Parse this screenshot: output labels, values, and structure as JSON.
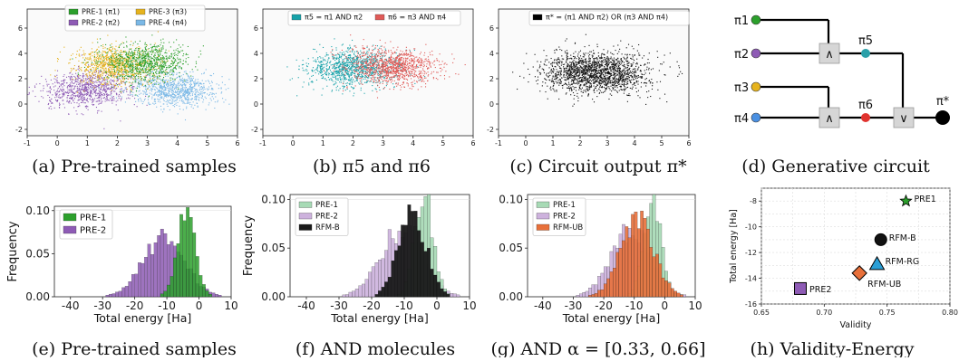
{
  "panels": [
    {
      "id": "a",
      "caption": "(a) Pre-trained samples",
      "type": "scatter",
      "xlim": [
        -1,
        6
      ],
      "ylim": [
        -2.5,
        7.5
      ],
      "xticks": [
        "-1",
        "0",
        "1",
        "2",
        "3",
        "4",
        "5",
        "6"
      ],
      "yticks": [
        "-2",
        "0",
        "2",
        "4",
        "6"
      ],
      "legend": [
        {
          "label": "PRE-1 (π1)",
          "color": "#2ca02c"
        },
        {
          "label": "PRE-3 (π3)",
          "color": "#e6b31e"
        },
        {
          "label": "PRE-2 (π2)",
          "color": "#8e5bb5"
        },
        {
          "label": "PRE-4 (π4)",
          "color": "#7ab8e6"
        }
      ],
      "clusters": [
        {
          "name": "PRE-2",
          "color": "#8e5bb5",
          "cx": 1.0,
          "cy": 1.2,
          "sx": 0.75,
          "sy": 0.7,
          "rot": 0.55,
          "n": 900
        },
        {
          "name": "PRE-4",
          "color": "#7ab8e6",
          "cx": 3.9,
          "cy": 1.2,
          "sx": 0.75,
          "sy": 0.65,
          "rot": -0.55,
          "n": 900
        },
        {
          "name": "PRE-3",
          "color": "#e6b31e",
          "cx": 1.9,
          "cy": 3.1,
          "sx": 0.7,
          "sy": 0.75,
          "rot": 0.5,
          "n": 900
        },
        {
          "name": "PRE-1",
          "color": "#2ca02c",
          "cx": 2.9,
          "cy": 3.3,
          "sx": 0.7,
          "sy": 0.7,
          "rot": -0.4,
          "n": 900
        }
      ]
    },
    {
      "id": "b",
      "caption": "(b) π5 and π6",
      "type": "scatter",
      "xlim": [
        -1,
        6
      ],
      "ylim": [
        -2.5,
        7.5
      ],
      "xticks": [
        "-1",
        "0",
        "1",
        "2",
        "3",
        "4",
        "5",
        "6"
      ],
      "yticks": [
        "-2",
        "0",
        "2",
        "4",
        "6"
      ],
      "legend": [
        {
          "label": "π5 = π1 AND π2",
          "color": "#17a2a9"
        },
        {
          "label": "π6 = π3 AND π4",
          "color": "#e05a57"
        }
      ],
      "clusters": [
        {
          "name": "π5",
          "color": "#17a2a9",
          "cx": 2.0,
          "cy": 2.9,
          "sx": 0.75,
          "sy": 0.7,
          "rot": 0.5,
          "n": 1100
        },
        {
          "name": "π6",
          "color": "#e05a57",
          "cx": 3.3,
          "cy": 3.0,
          "sx": 0.75,
          "sy": 0.7,
          "rot": -0.5,
          "n": 1100
        }
      ]
    },
    {
      "id": "c",
      "caption": "(c) Circuit output π*",
      "type": "scatter",
      "xlim": [
        -1,
        6
      ],
      "ylim": [
        -2.5,
        7.5
      ],
      "xticks": [
        "-1",
        "0",
        "1",
        "2",
        "3",
        "4",
        "5",
        "6"
      ],
      "yticks": [
        "-2",
        "0",
        "2",
        "4",
        "6"
      ],
      "legend": [
        {
          "label": "π* = (π1 AND π2) OR (π3 AND π4)",
          "color": "#000000"
        }
      ],
      "clusters": [
        {
          "name": "π*",
          "color": "#111111",
          "cx": 2.6,
          "cy": 2.5,
          "sx": 0.95,
          "sy": 0.8,
          "rot": 0.0,
          "n": 1800
        }
      ]
    },
    {
      "id": "d",
      "caption": "(d) Generative circuit",
      "type": "diagram",
      "inputs": [
        "π1",
        "π2",
        "π3",
        "π4"
      ],
      "input_colors": [
        "#2ca02c",
        "#8e5bb5",
        "#e6b31e",
        "#4a90e2"
      ],
      "gates": [
        "∧",
        "∧",
        "∨"
      ],
      "mids": [
        "π5",
        "π6"
      ],
      "mid_colors": [
        "#2aa0a9",
        "#e0332f"
      ],
      "output": "π*"
    },
    {
      "id": "e",
      "caption": "(e) Pre-trained samples",
      "type": "histogram",
      "xlabel": "Total energy [Ha]",
      "ylabel": "Frequency",
      "xlim": [
        -45,
        10
      ],
      "ylim": [
        0,
        0.105
      ],
      "xticks": [
        "-40",
        "-30",
        "-20",
        "-10",
        "0",
        "10"
      ],
      "yticks": [
        "0.00",
        "0.05",
        "0.10"
      ],
      "legend": [
        {
          "label": "PRE-1",
          "color": "#2ca02c"
        },
        {
          "label": "PRE-2",
          "color": "#8e5bb5"
        }
      ],
      "series": [
        {
          "name": "PRE-2",
          "color": "#8e5bb5",
          "alpha": 0.85,
          "mu": -11,
          "sigma": 6.5,
          "peak": 0.068
        },
        {
          "name": "PRE-1",
          "color": "#2ca02c",
          "alpha": 0.85,
          "mu": -4,
          "sigma": 2.8,
          "peak": 0.105
        }
      ]
    },
    {
      "id": "f",
      "caption": "(f) AND molecules",
      "type": "histogram",
      "xlabel": "Total energy [Ha]",
      "ylabel": "Frequency",
      "xlim": [
        -45,
        10
      ],
      "ylim": [
        0,
        0.105
      ],
      "xticks": [
        "-40",
        "-30",
        "-20",
        "-10",
        "0",
        "10"
      ],
      "yticks": [
        "0.00",
        "0.05",
        "0.10"
      ],
      "legend": [
        {
          "label": "PRE-1",
          "color": "#a7dab5"
        },
        {
          "label": "PRE-2",
          "color": "#cdb2dd"
        },
        {
          "label": "RFM-B",
          "color": "#1a1a1a"
        }
      ],
      "series": [
        {
          "name": "PRE-2",
          "color": "#cdb2dd",
          "alpha": 0.9,
          "mu": -11,
          "sigma": 6.5,
          "peak": 0.068
        },
        {
          "name": "PRE-1",
          "color": "#a7dab5",
          "alpha": 0.9,
          "mu": -4,
          "sigma": 2.8,
          "peak": 0.105
        },
        {
          "name": "RFM-B",
          "color": "#1a1a1a",
          "alpha": 0.95,
          "mu": -7.5,
          "sigma": 4.2,
          "peak": 0.088
        }
      ]
    },
    {
      "id": "g",
      "caption": "(g) AND α = [0.33, 0.66]",
      "type": "histogram",
      "xlabel": "Total energy [Ha]",
      "ylabel": "",
      "xlim": [
        -45,
        10
      ],
      "ylim": [
        0,
        0.105
      ],
      "xticks": [
        "-40",
        "-30",
        "-20",
        "-10",
        "0",
        "10"
      ],
      "yticks": [
        "0.00",
        "0.05",
        "0.10"
      ],
      "legend": [
        {
          "label": "PRE-1",
          "color": "#a7dab5"
        },
        {
          "label": "PRE-2",
          "color": "#cdb2dd"
        },
        {
          "label": "RFM-UB",
          "color": "#e8703a"
        }
      ],
      "series": [
        {
          "name": "PRE-2",
          "color": "#cdb2dd",
          "alpha": 0.9,
          "mu": -11,
          "sigma": 6.5,
          "peak": 0.068
        },
        {
          "name": "PRE-1",
          "color": "#a7dab5",
          "alpha": 0.9,
          "mu": -4,
          "sigma": 2.8,
          "peak": 0.105
        },
        {
          "name": "RFM-UB",
          "color": "#e8703a",
          "alpha": 0.9,
          "mu": -9,
          "sigma": 5.5,
          "peak": 0.078
        }
      ]
    },
    {
      "id": "h",
      "caption": "(h) Validity-Energy",
      "type": "scatter-markers",
      "xlabel": "Validity",
      "ylabel": "Total energy [Ha]",
      "xlim": [
        0.65,
        0.8
      ],
      "ylim": [
        -16,
        -7
      ],
      "xticks": [
        "0.65",
        "0.70",
        "0.75",
        "0.80"
      ],
      "yticks": [
        "-16",
        "-14",
        "-12",
        "-10",
        "-8"
      ],
      "points": [
        {
          "label": "PRE1",
          "x": 0.765,
          "y": -8.0,
          "marker": "star",
          "color": "#2ca02c"
        },
        {
          "label": "RFM-B",
          "x": 0.745,
          "y": -11.0,
          "marker": "circle",
          "color": "#111111"
        },
        {
          "label": "RFM-RG",
          "x": 0.742,
          "y": -12.9,
          "marker": "triangle",
          "color": "#2a9fd6"
        },
        {
          "label": "RFM-UB",
          "x": 0.728,
          "y": -13.6,
          "marker": "diamond",
          "color": "#e8703a"
        },
        {
          "label": "PRE2",
          "x": 0.681,
          "y": -14.8,
          "marker": "square",
          "color": "#8e5bb5"
        }
      ]
    }
  ]
}
